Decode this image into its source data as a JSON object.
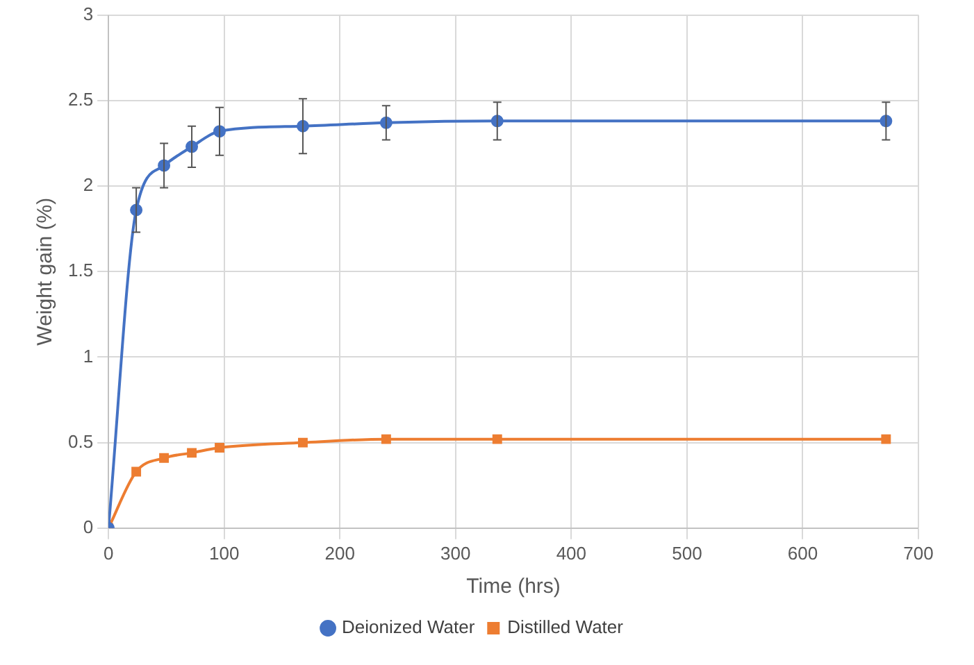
{
  "chart_data": {
    "type": "line",
    "xlabel": "Time (hrs)",
    "ylabel": "Weight gain (%)",
    "x": [
      0,
      24,
      48,
      72,
      96,
      168,
      240,
      336,
      672
    ],
    "series": [
      {
        "name": "Deionized Water",
        "color": "#4472c4",
        "marker": "circle",
        "values": [
          0,
          1.86,
          2.12,
          2.23,
          2.32,
          2.35,
          2.37,
          2.38,
          2.38
        ],
        "errors": [
          null,
          0.13,
          0.13,
          0.12,
          0.14,
          0.16,
          0.1,
          0.11,
          0.11
        ]
      },
      {
        "name": "Distilled Water",
        "color": "#ed7d31",
        "marker": "square",
        "values": [
          0,
          0.33,
          0.41,
          0.44,
          0.47,
          0.5,
          0.52,
          0.52,
          0.52
        ]
      }
    ],
    "xlim": [
      0,
      700
    ],
    "xticks": [
      0,
      100,
      200,
      300,
      400,
      500,
      600,
      700
    ],
    "ylim": [
      0,
      3
    ],
    "yticks": [
      0,
      0.5,
      1,
      1.5,
      2,
      2.5,
      3
    ],
    "grid": true,
    "legend": "bottom",
    "line_style": "solid"
  }
}
